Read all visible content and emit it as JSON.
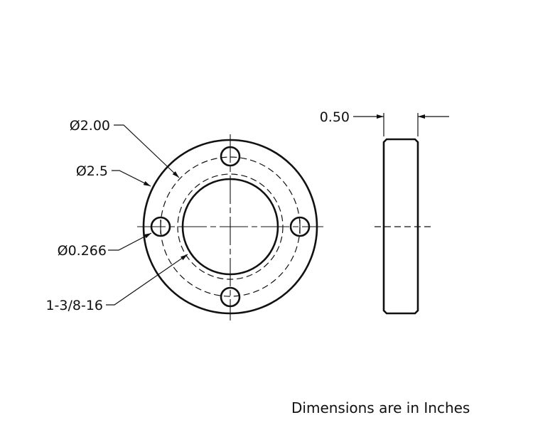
{
  "dimensions": {
    "bolt_circle": "Ø2.00",
    "outer_diameter": "Ø2.5",
    "bolt_hole": "Ø0.266",
    "thread": "1-3/8-16",
    "thickness": "0.50"
  },
  "note": "Dimensions are in Inches",
  "colors": {
    "line": "#111111",
    "background": "#ffffff"
  }
}
